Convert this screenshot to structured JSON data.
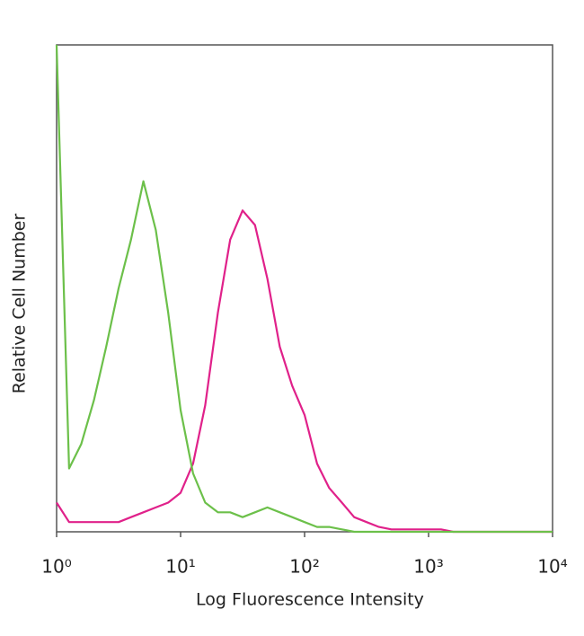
{
  "chart_data": {
    "type": "line",
    "x_label": "Log Fluorescence Intensity",
    "y_label": "Relative Cell Number",
    "log_x": true,
    "grid": false,
    "xlim": [
      1,
      10000
    ],
    "ylim": [
      0,
      100
    ],
    "xticks": [
      {
        "value": 1,
        "label": "10⁰"
      },
      {
        "value": 10,
        "label": "10¹"
      },
      {
        "value": 100,
        "label": "10²"
      },
      {
        "value": 1000,
        "label": "10³"
      },
      {
        "value": 10000,
        "label": "10⁴"
      }
    ],
    "x": [
      1,
      1.26,
      1.58,
      2,
      2.51,
      3.16,
      3.98,
      5.01,
      6.31,
      7.94,
      10,
      12.6,
      15.8,
      20,
      25.1,
      31.6,
      39.8,
      50.1,
      63.1,
      79.4,
      100,
      126,
      158,
      200,
      251,
      316,
      398,
      501,
      631,
      794,
      1000,
      1260,
      1580,
      2000,
      2510,
      3160,
      3980,
      5010,
      6310,
      7940,
      10000
    ],
    "series": [
      {
        "color": "#e0218a",
        "values": [
          6,
          2,
          2,
          2,
          2,
          2,
          3,
          4,
          5,
          6,
          8,
          14,
          26,
          45,
          60,
          66,
          63,
          52,
          38,
          30,
          24,
          14,
          9,
          6,
          3,
          2,
          1,
          0.5,
          0.5,
          0.5,
          0.5,
          0.5,
          0,
          0,
          0,
          0,
          0,
          0,
          0,
          0,
          0
        ]
      },
      {
        "color": "#6cc04a",
        "values": [
          100,
          13,
          18,
          27,
          38,
          50,
          60,
          72,
          62,
          45,
          25,
          12,
          6,
          4,
          4,
          3,
          4,
          5,
          4,
          3,
          2,
          1,
          1,
          0.5,
          0,
          0,
          0,
          0,
          0,
          0,
          0,
          0,
          0,
          0,
          0,
          0,
          0,
          0,
          0,
          0,
          0
        ]
      }
    ]
  }
}
